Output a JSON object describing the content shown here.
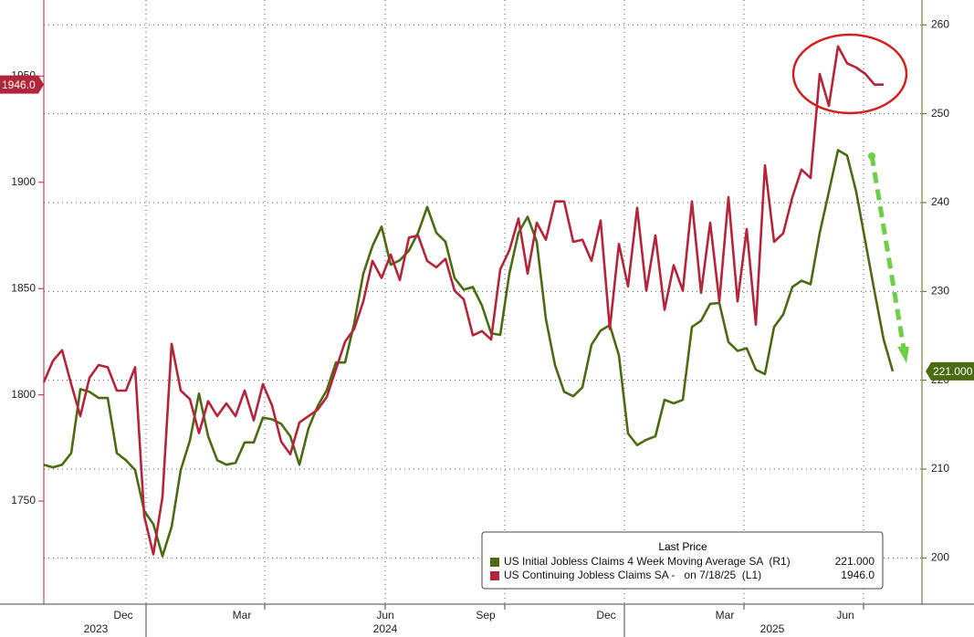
{
  "chart_data": {
    "type": "line",
    "x": [
      0,
      1,
      2,
      3,
      4,
      5,
      6,
      7,
      8,
      9,
      10,
      11,
      12,
      13,
      14,
      15,
      16,
      17,
      18,
      19,
      20,
      21,
      22,
      23,
      24,
      25,
      26,
      27,
      28,
      29,
      30,
      31,
      32,
      33,
      34,
      35,
      36,
      37,
      38,
      39,
      40,
      41,
      42,
      43,
      44,
      45,
      46,
      47,
      48,
      49,
      50,
      51,
      52,
      53,
      54,
      55,
      56,
      57,
      58,
      59,
      60,
      61,
      62,
      63,
      64,
      65,
      66,
      67,
      68,
      69,
      70,
      71,
      72,
      73,
      74,
      75,
      76,
      77,
      78,
      79,
      80,
      81,
      82,
      83,
      84,
      85,
      86,
      87,
      88,
      89,
      90,
      91,
      92,
      93
    ],
    "xlim": [
      0,
      96.2
    ],
    "xticks": [
      {
        "value": 8.7,
        "label": "Dec"
      },
      {
        "value": 21.7,
        "label": "Mar"
      },
      {
        "value": 37.4,
        "label": "Jun"
      },
      {
        "value": 48.4,
        "label": "Sep"
      },
      {
        "value": 61.6,
        "label": "Dec"
      },
      {
        "value": 74.6,
        "label": "Mar"
      },
      {
        "value": 87.8,
        "label": "Jun"
      }
    ],
    "xgrid": [
      11.2,
      24.2,
      37.4,
      50.5,
      63.6,
      76.7,
      89.8
    ],
    "year_ticks": [
      {
        "value": 5.7,
        "label": "2023"
      },
      {
        "value": 37.4,
        "label": "2024"
      },
      {
        "value": 79.8,
        "label": "2025"
      }
    ],
    "year_dividers": [
      11.2,
      63.6
    ],
    "ylim": [
      1701.5,
      1985.8
    ],
    "yticks": [
      1750,
      1800,
      1850,
      1900,
      1950
    ],
    "y2lim": [
      194.8,
      262.8
    ],
    "y2ticks": [
      200,
      210,
      220,
      230,
      240,
      250,
      260
    ],
    "grid": true,
    "legend_title": "Last Price",
    "series": [
      {
        "name": "US Initial Jobless Claims 4 Week Moving Average SA  (R1)",
        "axis": "y2",
        "color": "#4b6b12",
        "last_label": "221.000",
        "values": [
          210.5,
          210.2,
          210.5,
          211.8,
          219.0,
          218.7,
          218.0,
          218.0,
          211.8,
          211.0,
          209.9,
          205.3,
          203.8,
          200.2,
          203.5,
          209.9,
          213.2,
          218.5,
          213.7,
          211.0,
          210.5,
          210.7,
          213.0,
          213.0,
          215.8,
          215.6,
          215.1,
          213.7,
          210.5,
          214.6,
          217.1,
          218.9,
          222.0,
          222.0,
          226.4,
          232.0,
          235.1,
          237.3,
          233.0,
          233.5,
          234.6,
          236.6,
          239.5,
          236.6,
          235.6,
          231.5,
          230.2,
          230.5,
          228.4,
          225.3,
          225.1,
          232.0,
          236.6,
          238.4,
          235.6,
          226.9,
          221.7,
          218.7,
          218.2,
          219.2,
          224.0,
          225.6,
          226.2,
          222.8,
          214.0,
          212.7,
          213.3,
          213.7,
          217.8,
          217.4,
          217.8,
          226.0,
          226.7,
          228.6,
          228.7,
          224.3,
          223.3,
          223.6,
          221.2,
          220.7,
          226.0,
          227.4,
          230.5,
          231.2,
          230.8,
          236.6,
          241.2,
          245.9,
          245.3,
          241.2,
          235.6,
          230.0,
          224.6,
          221.0
        ]
      },
      {
        "name": "US Continuing Jobless Claims SA -   on 7/18/25  (L1)",
        "axis": "y",
        "color": "#b3253a",
        "last_label": "1946.0",
        "values": [
          1806,
          1816,
          1821,
          1805,
          1790,
          1808,
          1814,
          1813,
          1802,
          1802,
          1813,
          1743,
          1725,
          1752,
          1824,
          1802,
          1798,
          1782,
          1797,
          1790,
          1796,
          1790,
          1802,
          1788,
          1805,
          1795,
          1778,
          1772,
          1787,
          1790,
          1793,
          1799,
          1812,
          1825,
          1831,
          1844,
          1863,
          1855,
          1866,
          1854,
          1874,
          1875,
          1863,
          1860,
          1864,
          1849,
          1845,
          1828,
          1830,
          1826,
          1859,
          1868,
          1883,
          1857,
          1881,
          1873,
          1891,
          1891,
          1872,
          1873,
          1863,
          1882,
          1831,
          1871,
          1851,
          1888,
          1849,
          1875,
          1840,
          1861,
          1849,
          1891,
          1848,
          1881,
          1844,
          1893,
          1844,
          1878,
          1833,
          1908,
          1872,
          1876,
          1893,
          1906,
          1902,
          1951,
          1936,
          1964,
          1956,
          1954,
          1951,
          1946,
          1946,
          null
        ]
      }
    ]
  }
}
